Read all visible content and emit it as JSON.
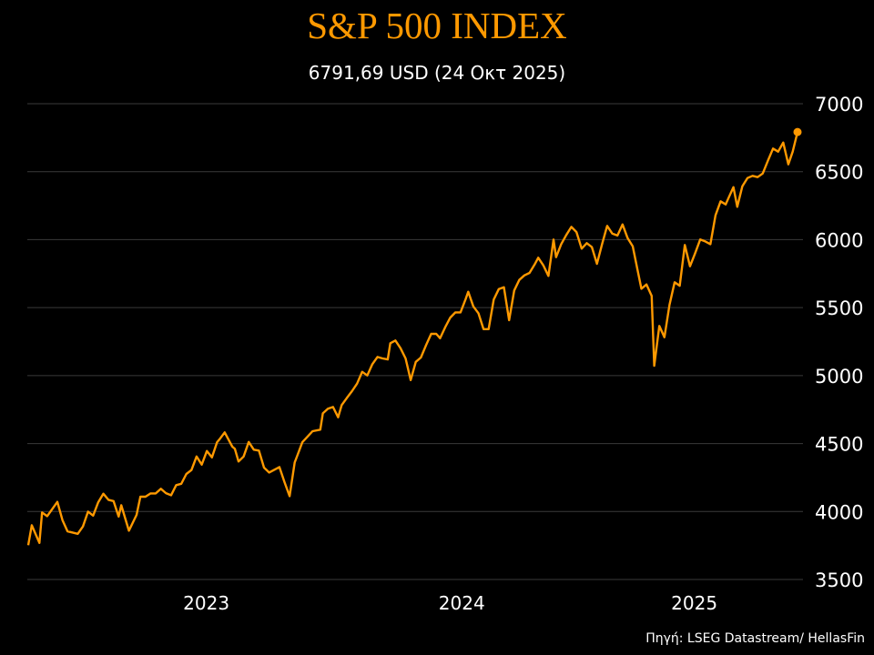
{
  "chart_data": {
    "type": "line",
    "title": "S&P 500 INDEX",
    "subtitle": "6791,69 USD (24 Οκτ 2025)",
    "source": "Πηγή: LSEG Datastream/ HellasFin",
    "xlabel": "",
    "ylabel": "",
    "x_tick_labels": [
      "2023",
      "2024",
      "2025"
    ],
    "y_ticks": [
      3500,
      4000,
      4500,
      5000,
      5500,
      6000,
      6500,
      7000
    ],
    "ylim": [
      3500,
      7000
    ],
    "y_axis_side": "right",
    "grid": "horizontal",
    "line_color": "#FF9900",
    "end_marker": true,
    "last_value": 6791.69,
    "points": [
      [
        2022.803,
        3752
      ],
      [
        2022.817,
        3899
      ],
      [
        2022.847,
        3769
      ],
      [
        2022.857,
        3993
      ],
      [
        2022.877,
        3966
      ],
      [
        2022.917,
        4071
      ],
      [
        2022.937,
        3937
      ],
      [
        2022.957,
        3854
      ],
      [
        2022.997,
        3836
      ],
      [
        2023.017,
        3890
      ],
      [
        2023.037,
        3999
      ],
      [
        2023.057,
        3970
      ],
      [
        2023.077,
        4068
      ],
      [
        2023.097,
        4131
      ],
      [
        2023.117,
        4086
      ],
      [
        2023.137,
        4077
      ],
      [
        2023.157,
        3963
      ],
      [
        2023.167,
        4046
      ],
      [
        2023.197,
        3859
      ],
      [
        2023.227,
        3975
      ],
      [
        2023.242,
        4109
      ],
      [
        2023.262,
        4109
      ],
      [
        2023.282,
        4133
      ],
      [
        2023.302,
        4133
      ],
      [
        2023.322,
        4167
      ],
      [
        2023.342,
        4135
      ],
      [
        2023.362,
        4120
      ],
      [
        2023.382,
        4194
      ],
      [
        2023.402,
        4204
      ],
      [
        2023.422,
        4276
      ],
      [
        2023.442,
        4305
      ],
      [
        2023.462,
        4405
      ],
      [
        2023.482,
        4345
      ],
      [
        2023.502,
        4445
      ],
      [
        2023.522,
        4398
      ],
      [
        2023.542,
        4510
      ],
      [
        2023.552,
        4532
      ],
      [
        2023.572,
        4582
      ],
      [
        2023.602,
        4477
      ],
      [
        2023.612,
        4461
      ],
      [
        2023.626,
        4368
      ],
      [
        2023.646,
        4405
      ],
      [
        2023.666,
        4512
      ],
      [
        2023.686,
        4455
      ],
      [
        2023.706,
        4448
      ],
      [
        2023.726,
        4323
      ],
      [
        2023.746,
        4287
      ],
      [
        2023.786,
        4327
      ],
      [
        2023.806,
        4216
      ],
      [
        2023.826,
        4113
      ],
      [
        2023.846,
        4361
      ],
      [
        2023.856,
        4410
      ],
      [
        2023.876,
        4510
      ],
      [
        2023.896,
        4550
      ],
      [
        2023.916,
        4591
      ],
      [
        2023.946,
        4602
      ],
      [
        2023.956,
        4722
      ],
      [
        2023.976,
        4756
      ],
      [
        2023.996,
        4769
      ],
      [
        2024.016,
        4693
      ],
      [
        2024.03,
        4783
      ],
      [
        2024.05,
        4836
      ],
      [
        2024.07,
        4885
      ],
      [
        2024.09,
        4941
      ],
      [
        2024.11,
        5028
      ],
      [
        2024.13,
        5001
      ],
      [
        2024.15,
        5084
      ],
      [
        2024.17,
        5137
      ],
      [
        2024.19,
        5126
      ],
      [
        2024.21,
        5119
      ],
      [
        2024.22,
        5238
      ],
      [
        2024.24,
        5258
      ],
      [
        2024.26,
        5202
      ],
      [
        2024.28,
        5126
      ],
      [
        2024.3,
        4967
      ],
      [
        2024.32,
        5101
      ],
      [
        2024.34,
        5133
      ],
      [
        2024.36,
        5224
      ],
      [
        2024.38,
        5307
      ],
      [
        2024.4,
        5307
      ],
      [
        2024.415,
        5275
      ],
      [
        2024.435,
        5356
      ],
      [
        2024.455,
        5427
      ],
      [
        2024.475,
        5465
      ],
      [
        2024.495,
        5465
      ],
      [
        2024.515,
        5563
      ],
      [
        2024.525,
        5617
      ],
      [
        2024.545,
        5509
      ],
      [
        2024.565,
        5459
      ],
      [
        2024.585,
        5342
      ],
      [
        2024.605,
        5342
      ],
      [
        2024.625,
        5559
      ],
      [
        2024.645,
        5637
      ],
      [
        2024.665,
        5650
      ],
      [
        2024.685,
        5407
      ],
      [
        2024.705,
        5626
      ],
      [
        2024.725,
        5704
      ],
      [
        2024.745,
        5737
      ],
      [
        2024.765,
        5755
      ],
      [
        2024.785,
        5817
      ],
      [
        2024.799,
        5867
      ],
      [
        2024.819,
        5811
      ],
      [
        2024.839,
        5733
      ],
      [
        2024.859,
        6001
      ],
      [
        2024.869,
        5871
      ],
      [
        2024.889,
        5967
      ],
      [
        2024.909,
        6034
      ],
      [
        2024.929,
        6094
      ],
      [
        2024.949,
        6056
      ],
      [
        2024.969,
        5934
      ],
      [
        2024.989,
        5974
      ],
      [
        2025.009,
        5945
      ],
      [
        2025.029,
        5822
      ],
      [
        2025.049,
        5967
      ],
      [
        2025.069,
        6101
      ],
      [
        2025.089,
        6045
      ],
      [
        2025.109,
        6030
      ],
      [
        2025.129,
        6112
      ],
      [
        2025.149,
        6011
      ],
      [
        2025.169,
        5951
      ],
      [
        2025.189,
        5766
      ],
      [
        2025.203,
        5639
      ],
      [
        2025.223,
        5670
      ],
      [
        2025.243,
        5586
      ],
      [
        2025.253,
        5072
      ],
      [
        2025.273,
        5365
      ],
      [
        2025.293,
        5282
      ],
      [
        2025.313,
        5521
      ],
      [
        2025.333,
        5686
      ],
      [
        2025.353,
        5661
      ],
      [
        2025.373,
        5961
      ],
      [
        2025.393,
        5804
      ],
      [
        2025.413,
        5900
      ],
      [
        2025.433,
        6001
      ],
      [
        2025.453,
        5987
      ],
      [
        2025.473,
        5967
      ],
      [
        2025.493,
        6179
      ],
      [
        2025.513,
        6282
      ],
      [
        2025.533,
        6259
      ],
      [
        2025.543,
        6302
      ],
      [
        2025.563,
        6386
      ],
      [
        2025.578,
        6242
      ],
      [
        2025.598,
        6393
      ],
      [
        2025.618,
        6453
      ],
      [
        2025.638,
        6469
      ],
      [
        2025.658,
        6460
      ],
      [
        2025.678,
        6487
      ],
      [
        2025.698,
        6580
      ],
      [
        2025.718,
        6670
      ],
      [
        2025.738,
        6647
      ],
      [
        2025.758,
        6714
      ],
      [
        2025.778,
        6554
      ],
      [
        2025.795,
        6647
      ],
      [
        2025.814,
        6791.69
      ]
    ]
  }
}
